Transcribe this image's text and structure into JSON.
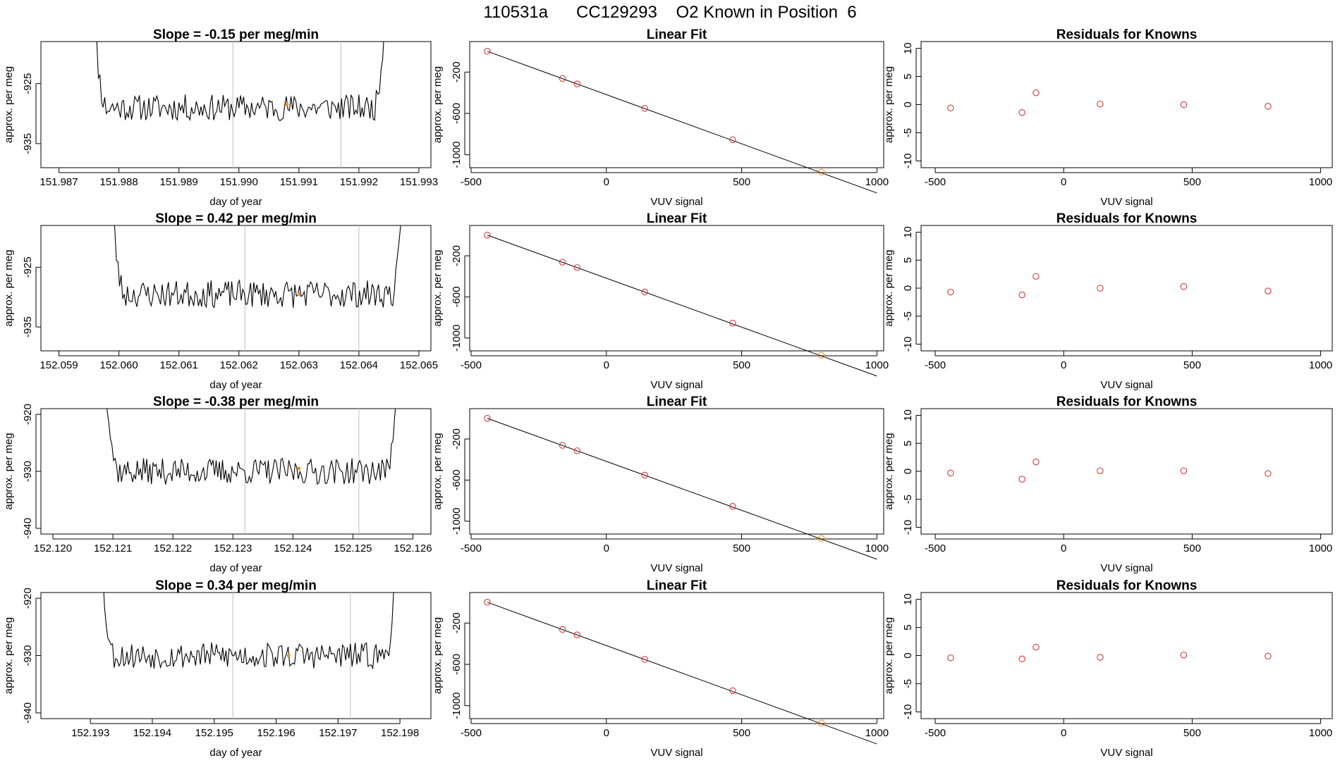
{
  "page": {
    "title": "110531a      CC129293    O2 Known in Position  6"
  },
  "colors": {
    "line": "#000000",
    "red": "#d43a3a",
    "orange": "#e8912c",
    "grid": "#c8c8c8",
    "frame": "#000000"
  },
  "chart_data": [
    {
      "id": "r0-signal",
      "type": "line",
      "title": "Slope =  -0.15  per meg/min",
      "xlabel": "day of year",
      "ylabel": "approx. per meg",
      "xlim": [
        151.9867,
        151.9932
      ],
      "ylim": [
        -939,
        -918
      ],
      "xticks": [
        151.987,
        151.988,
        151.989,
        151.99,
        151.991,
        151.992,
        151.993
      ],
      "xtick_labels": [
        "151.987",
        "151.988",
        "151.989",
        "151.990",
        "151.991",
        "151.992",
        "151.993"
      ],
      "yticks": [
        -925,
        -935
      ],
      "ytick_labels": [
        "-925",
        "-935"
      ],
      "vlines": [
        151.9899,
        151.9917
      ],
      "x_start": 151.9875,
      "x_end": 151.9925,
      "level": -929,
      "noise": 2.2,
      "seed": 11,
      "marker": {
        "x": 151.9908,
        "y": -928.5
      }
    },
    {
      "id": "r0-fit",
      "type": "scatter",
      "title": "Linear Fit",
      "xlabel": "VUV signal",
      "ylabel": "approx. per meg",
      "xlim": [
        -505,
        1025
      ],
      "ylim": [
        -1125,
        95
      ],
      "xticks": [
        -500,
        0,
        500,
        1000
      ],
      "xtick_labels": [
        "-500",
        "0",
        "500",
        "1000"
      ],
      "yticks": [
        -200,
        -600,
        -1000
      ],
      "ytick_labels": [
        "-200",
        "-600",
        "-1000"
      ],
      "x": [
        -440,
        -162,
        -108,
        142,
        467,
        795
      ],
      "y": [
        1,
        -262,
        -315,
        -552,
        -855,
        -1168
      ],
      "colors": [
        "red",
        "red",
        "red",
        "red",
        "red",
        "orange"
      ],
      "fit": {
        "slope": -0.952,
        "intercept": -418,
        "x0": -440,
        "x1": 1000
      }
    },
    {
      "id": "r0-resid",
      "type": "scatter",
      "title": "Residuals for Knowns",
      "xlabel": "VUV signal",
      "ylabel": "approx. per meg",
      "xlim": [
        -555,
        1045
      ],
      "ylim": [
        -11.2,
        11.2
      ],
      "xticks": [
        -500,
        0,
        500,
        1000
      ],
      "xtick_labels": [
        "-500",
        "0",
        "500",
        "1000"
      ],
      "yticks": [
        10,
        5,
        0,
        -5,
        -10
      ],
      "ytick_labels": [
        "10",
        "5",
        "0",
        "-5",
        "-10"
      ],
      "x": [
        -440,
        -162,
        -108,
        142,
        467,
        795
      ],
      "y": [
        -0.6,
        -1.4,
        2.1,
        0.1,
        0.0,
        -0.3
      ],
      "colors": [
        "red",
        "red",
        "red",
        "red",
        "red",
        "red"
      ]
    },
    {
      "id": "r1-signal",
      "type": "line",
      "title": "Slope =  0.42  per meg/min",
      "xlabel": "day of year",
      "ylabel": "approx. per meg",
      "xlim": [
        152.0587,
        152.0652
      ],
      "ylim": [
        -939,
        -918
      ],
      "xticks": [
        152.059,
        152.06,
        152.061,
        152.062,
        152.063,
        152.064,
        152.065
      ],
      "xtick_labels": [
        "152.059",
        "152.060",
        "152.061",
        "152.062",
        "152.063",
        "152.064",
        "152.065"
      ],
      "yticks": [
        -925,
        -935
      ],
      "ytick_labels": [
        "-925",
        "-935"
      ],
      "vlines": [
        152.0621,
        152.064
      ],
      "x_start": 152.0598,
      "x_end": 152.0648,
      "level": -929.5,
      "noise": 2.3,
      "seed": 23,
      "marker": {
        "x": 152.063,
        "y": -929.5
      }
    },
    {
      "id": "r1-fit",
      "type": "scatter",
      "title": "Linear Fit",
      "xlabel": "VUV signal",
      "ylabel": "approx. per meg",
      "xlim": [
        -505,
        1025
      ],
      "ylim": [
        -1125,
        95
      ],
      "xticks": [
        -500,
        0,
        500,
        1000
      ],
      "xtick_labels": [
        "-500",
        "0",
        "500",
        "1000"
      ],
      "yticks": [
        -200,
        -600,
        -1000
      ],
      "ytick_labels": [
        "-200",
        "-600",
        "-1000"
      ],
      "x": [
        -440,
        -162,
        -108,
        142,
        467,
        795
      ],
      "y": [
        1,
        -262,
        -315,
        -552,
        -855,
        -1168
      ],
      "colors": [
        "red",
        "red",
        "red",
        "red",
        "red",
        "orange"
      ],
      "fit": {
        "slope": -0.952,
        "intercept": -418,
        "x0": -440,
        "x1": 1000
      }
    },
    {
      "id": "r1-resid",
      "type": "scatter",
      "title": "Residuals for Knowns",
      "xlabel": "VUV signal",
      "ylabel": "approx. per meg",
      "xlim": [
        -555,
        1045
      ],
      "ylim": [
        -11.2,
        11.2
      ],
      "xticks": [
        -500,
        0,
        500,
        1000
      ],
      "xtick_labels": [
        "-500",
        "0",
        "500",
        "1000"
      ],
      "yticks": [
        10,
        5,
        0,
        -5,
        -10
      ],
      "ytick_labels": [
        "10",
        "5",
        "0",
        "-5",
        "-10"
      ],
      "x": [
        -440,
        -162,
        -108,
        142,
        467,
        795
      ],
      "y": [
        -0.7,
        -1.2,
        2.1,
        0.0,
        0.3,
        -0.5
      ],
      "colors": [
        "red",
        "red",
        "red",
        "red",
        "red",
        "red"
      ]
    },
    {
      "id": "r2-signal",
      "type": "line",
      "title": "Slope =  -0.38  per meg/min",
      "xlabel": "day of year",
      "ylabel": "approx. per meg",
      "xlim": [
        152.1198,
        152.1263
      ],
      "ylim": [
        -941,
        -919
      ],
      "xticks": [
        152.12,
        152.121,
        152.122,
        152.123,
        152.124,
        152.125,
        152.126
      ],
      "xtick_labels": [
        "152.120",
        "152.121",
        "152.122",
        "152.123",
        "152.124",
        "152.125",
        "152.126"
      ],
      "yticks": [
        -920,
        -930,
        -940
      ],
      "ytick_labels": [
        "-920",
        "-930",
        "-940"
      ],
      "vlines": [
        152.1232,
        152.1251
      ],
      "x_start": 152.1208,
      "x_end": 152.1258,
      "level": -930,
      "noise": 2.3,
      "seed": 37,
      "marker": {
        "x": 152.1241,
        "y": -929.5
      }
    },
    {
      "id": "r2-fit",
      "type": "scatter",
      "title": "Linear Fit",
      "xlabel": "VUV signal",
      "ylabel": "approx. per meg",
      "xlim": [
        -505,
        1025
      ],
      "ylim": [
        -1125,
        95
      ],
      "xticks": [
        -500,
        0,
        500,
        1000
      ],
      "xtick_labels": [
        "-500",
        "0",
        "500",
        "1000"
      ],
      "yticks": [
        -200,
        -600,
        -1000
      ],
      "ytick_labels": [
        "-200",
        "-600",
        "-1000"
      ],
      "x": [
        -440,
        -162,
        -108,
        142,
        467,
        795
      ],
      "y": [
        1,
        -262,
        -315,
        -552,
        -855,
        -1168
      ],
      "colors": [
        "red",
        "red",
        "red",
        "red",
        "red",
        "orange"
      ],
      "fit": {
        "slope": -0.952,
        "intercept": -418,
        "x0": -440,
        "x1": 1000
      }
    },
    {
      "id": "r2-resid",
      "type": "scatter",
      "title": "Residuals for Knowns",
      "xlabel": "VUV signal",
      "ylabel": "approx. per meg",
      "xlim": [
        -555,
        1045
      ],
      "ylim": [
        -11.2,
        11.2
      ],
      "xticks": [
        -500,
        0,
        500,
        1000
      ],
      "xtick_labels": [
        "-500",
        "0",
        "500",
        "1000"
      ],
      "yticks": [
        10,
        5,
        0,
        -5,
        -10
      ],
      "ytick_labels": [
        "10",
        "5",
        "0",
        "-5",
        "-10"
      ],
      "x": [
        -440,
        -162,
        -108,
        142,
        467,
        795
      ],
      "y": [
        -0.3,
        -1.4,
        1.7,
        0.1,
        0.1,
        -0.4
      ],
      "colors": [
        "red",
        "red",
        "red",
        "red",
        "red",
        "red"
      ]
    },
    {
      "id": "r3-signal",
      "type": "line",
      "title": "Slope =  0.34  per meg/min",
      "xlabel": "day of year",
      "ylabel": "approx. per meg",
      "xlim": [
        152.1922,
        152.1985
      ],
      "ylim": [
        -941,
        -919
      ],
      "xticks": [
        152.193,
        152.194,
        152.195,
        152.196,
        152.197,
        152.198
      ],
      "xtick_labels": [
        "152.193",
        "152.194",
        "152.195",
        "152.196",
        "152.197",
        "152.198"
      ],
      "yticks": [
        -920,
        -930,
        -940
      ],
      "ytick_labels": [
        "-920",
        "-930",
        "-940"
      ],
      "vlines": [
        152.1953,
        152.1972
      ],
      "x_start": 152.1931,
      "x_end": 152.198,
      "level": -930,
      "noise": 2.3,
      "seed": 53,
      "marker": {
        "x": 152.1962,
        "y": -930.0
      }
    },
    {
      "id": "r3-fit",
      "type": "scatter",
      "title": "Linear Fit",
      "xlabel": "VUV signal",
      "ylabel": "approx. per meg",
      "xlim": [
        -505,
        1025
      ],
      "ylim": [
        -1125,
        95
      ],
      "xticks": [
        -500,
        0,
        500,
        1000
      ],
      "xtick_labels": [
        "-500",
        "0",
        "500",
        "1000"
      ],
      "yticks": [
        -200,
        -600,
        -1000
      ],
      "ytick_labels": [
        "-200",
        "-600",
        "-1000"
      ],
      "x": [
        -440,
        -162,
        -108,
        142,
        467,
        795
      ],
      "y": [
        1,
        -262,
        -315,
        -552,
        -855,
        -1168
      ],
      "colors": [
        "red",
        "red",
        "red",
        "red",
        "red",
        "orange"
      ],
      "fit": {
        "slope": -0.952,
        "intercept": -418,
        "x0": -440,
        "x1": 1000
      }
    },
    {
      "id": "r3-resid",
      "type": "scatter",
      "title": "Residuals for Knowns",
      "xlabel": "VUV signal",
      "ylabel": "approx. per meg",
      "xlim": [
        -555,
        1045
      ],
      "ylim": [
        -11.2,
        11.2
      ],
      "xticks": [
        -500,
        0,
        500,
        1000
      ],
      "xtick_labels": [
        "-500",
        "0",
        "500",
        "1000"
      ],
      "yticks": [
        10,
        5,
        0,
        -5,
        -10
      ],
      "ytick_labels": [
        "10",
        "5",
        "0",
        "-5",
        "-10"
      ],
      "x": [
        -440,
        -162,
        -108,
        142,
        467,
        795
      ],
      "y": [
        -0.4,
        -0.6,
        1.5,
        -0.3,
        0.1,
        -0.1
      ],
      "colors": [
        "red",
        "red",
        "red",
        "red",
        "red",
        "red"
      ]
    }
  ]
}
